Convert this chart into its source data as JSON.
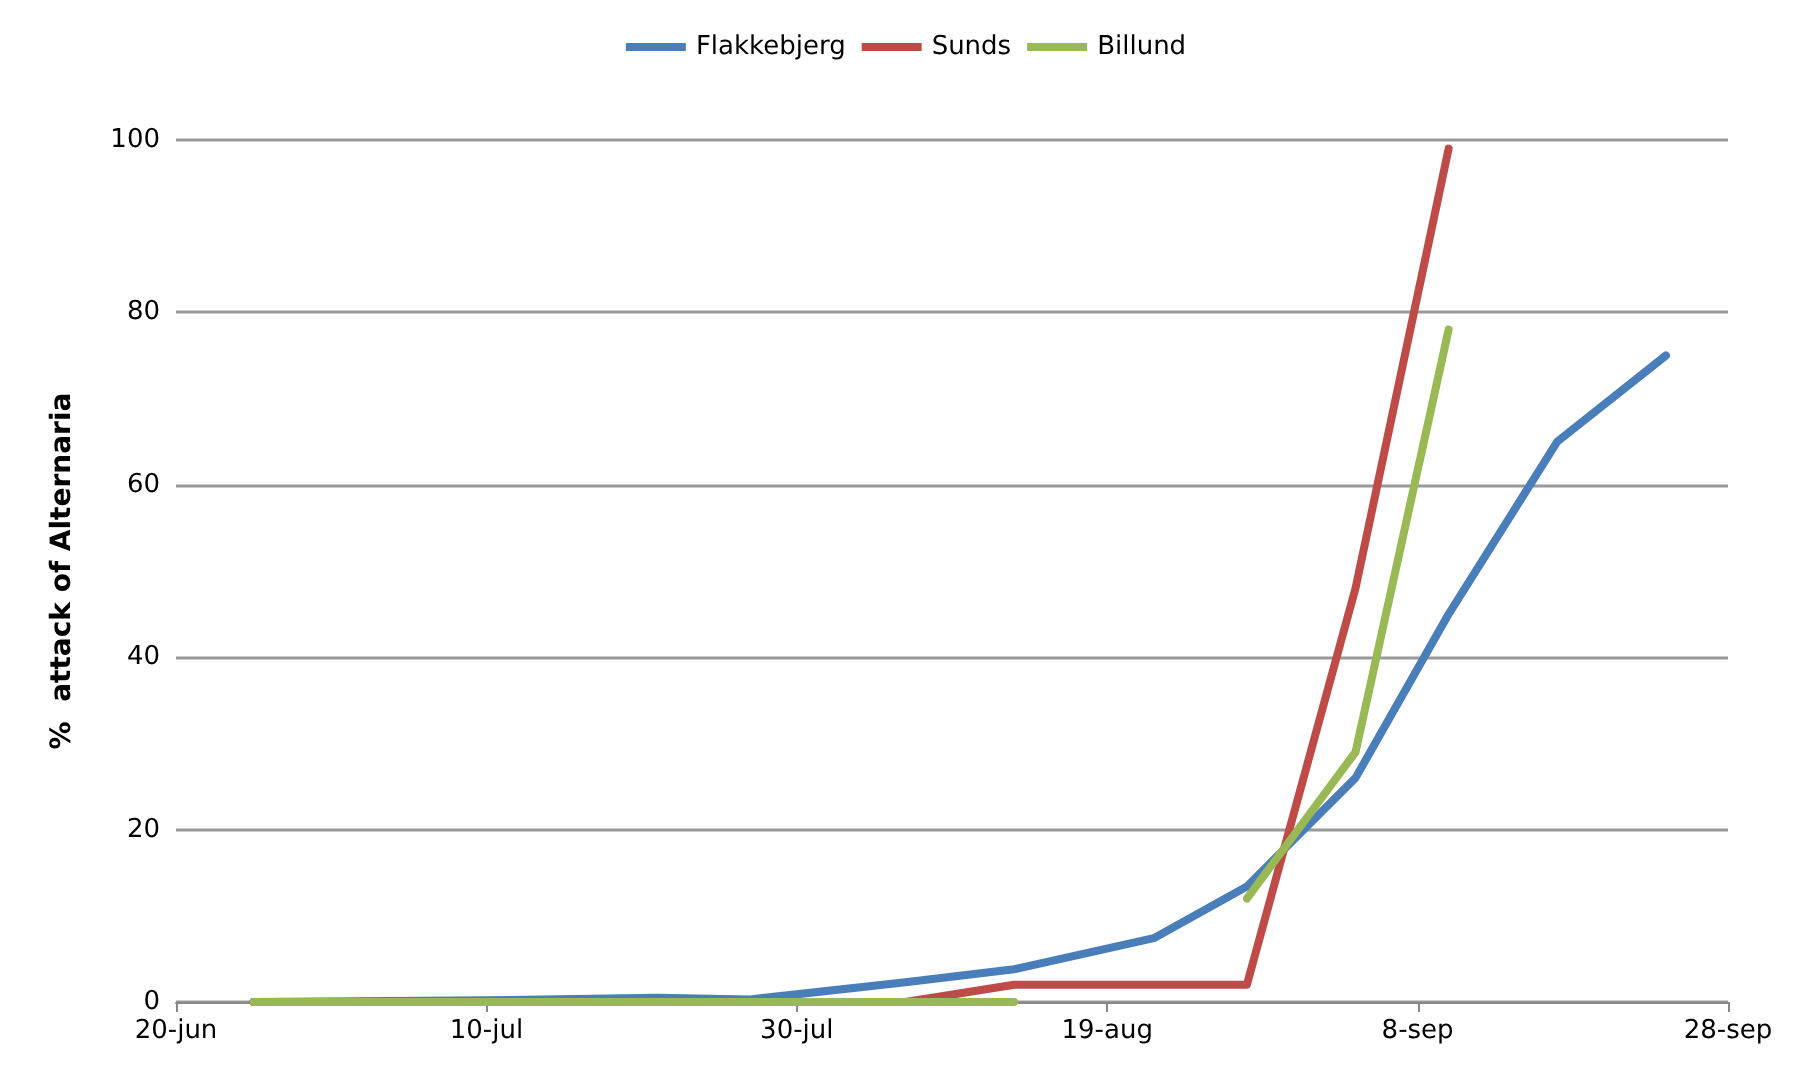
{
  "chart_data": {
    "type": "line",
    "ylabel": "%  attack of Alternaria",
    "legend": "top",
    "grid": "y",
    "marker": "none",
    "line_style": "solid",
    "xlim": [
      "--06-20",
      "--09-28"
    ],
    "xticks": [
      {
        "value": "--06-20",
        "label": "20-jun"
      },
      {
        "value": "--07-10",
        "label": "10-jul"
      },
      {
        "value": "--07-30",
        "label": "30-jul"
      },
      {
        "value": "--08-19",
        "label": "19-aug"
      },
      {
        "value": "--09-08",
        "label": "8-sep"
      },
      {
        "value": "--09-28",
        "label": "28-sep"
      }
    ],
    "ylim": [
      0,
      100
    ],
    "yticks": [
      0,
      20,
      40,
      60,
      80,
      100
    ],
    "series": [
      {
        "name": "Flakkebjerg",
        "color": "#4a7ebb",
        "x": [
          "--06-25",
          "--07-10",
          "--07-21",
          "--07-27",
          "--08-06",
          "--08-13",
          "--08-22",
          "--08-28",
          "--09-04",
          "--09-10",
          "--09-17",
          "--09-24"
        ],
        "values": [
          0,
          0.2,
          0.5,
          0.3,
          2.3,
          3.8,
          7.4,
          13.4,
          26,
          45,
          65,
          75
        ]
      },
      {
        "name": "Sunds",
        "color": "#be4b48",
        "x": [
          "--06-25",
          "--08-06",
          "--08-13",
          "--08-28",
          "--09-04",
          "--09-10"
        ],
        "values": [
          0,
          0,
          2,
          2,
          48,
          99
        ]
      },
      {
        "name": "Billund",
        "color": "#98b954",
        "x": [
          "--06-25",
          "--08-13",
          "--08-20",
          "--08-28",
          "--09-04",
          "--09-10"
        ],
        "values": [
          0,
          0,
          null,
          12,
          29,
          78
        ]
      }
    ]
  }
}
